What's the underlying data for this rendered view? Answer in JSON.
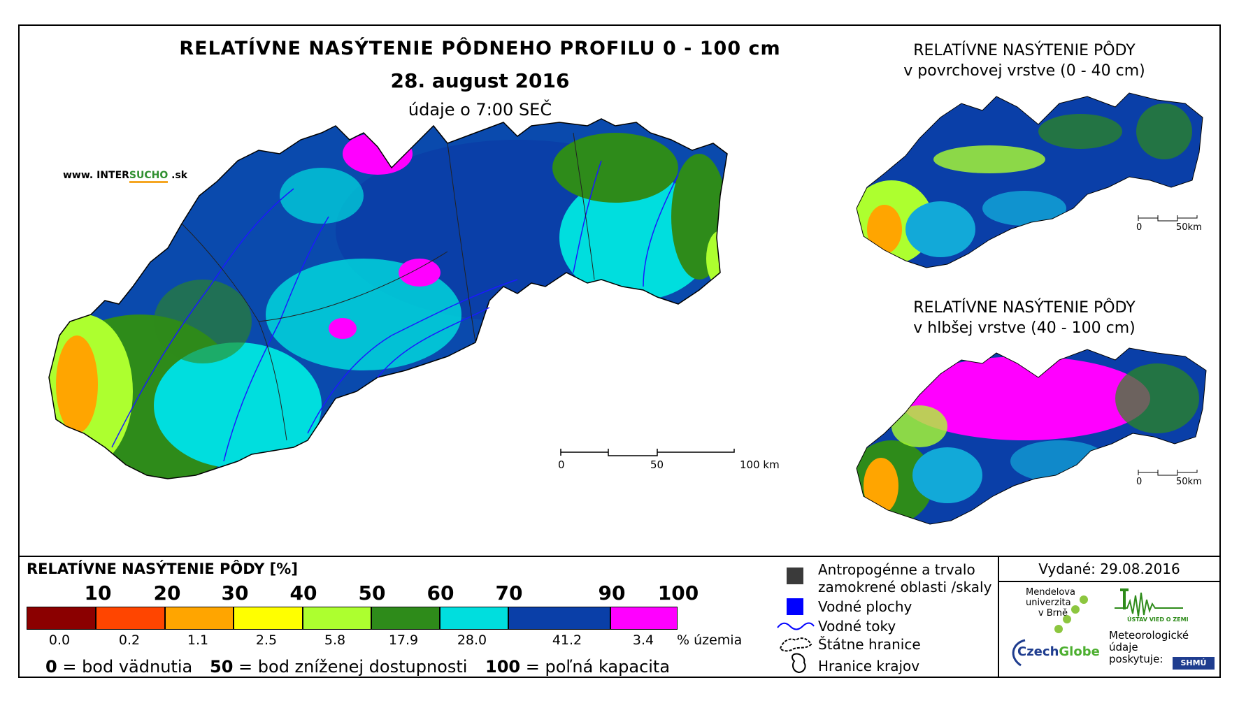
{
  "header": {
    "title": "RELATÍVNE NASÝTENIE PÔDNEHO PROFILU 0 - 100 cm",
    "date": "28. august 2016",
    "subtitle": "údaje o 7:00 SEČ",
    "site_prefix": "www. INTER",
    "site_brand": "SUCHO",
    "site_suffix": " .sk"
  },
  "map_main": {
    "scale": {
      "tick0": "0",
      "tick1": "50",
      "tick2": "100 km"
    }
  },
  "map_surface": {
    "title_line1": "RELATÍVNE NASÝTENIE PÔDY",
    "title_line2": "v povrchovej vrstve (0 - 40 cm)",
    "scale": {
      "tick0": "0",
      "tick1": "50km"
    }
  },
  "map_deep": {
    "title_line1": "RELATÍVNE NASÝTENIE PÔDY",
    "title_line2": "v hlbšej vrstve (40 - 100 cm)",
    "scale": {
      "tick0": "0",
      "tick1": "50km"
    }
  },
  "legend": {
    "title": "RELATÍVNE NASÝTENIE PÔDY [%]",
    "ticks": [
      "10",
      "20",
      "30",
      "40",
      "50",
      "60",
      "70",
      "90",
      "100"
    ],
    "classes": [
      {
        "color": "#8b0000",
        "share": "0.0"
      },
      {
        "color": "#ff4500",
        "share": "0.2"
      },
      {
        "color": "#ffa500",
        "share": "1.1"
      },
      {
        "color": "#ffff00",
        "share": "2.5"
      },
      {
        "color": "#adff2f",
        "share": "5.8"
      },
      {
        "color": "#2e8b1a",
        "share": "17.9"
      },
      {
        "color": "#00dede",
        "share": "28.0"
      },
      {
        "color": "#0a3fa8",
        "share": "41.2"
      },
      {
        "color": "#ff00ff",
        "share": "3.4"
      }
    ],
    "share_unit": "% územia",
    "note0_num": "0",
    "note0_text": " = bod vädnutia",
    "note50_num": "50",
    "note50_text": " = bod zníženej dostupnosti",
    "note100_num": "100",
    "note100_text": " = poľná kapacita"
  },
  "symbols": {
    "anthropogenic_line1": "Antropogénne a trvalo",
    "anthropogenic_line2": "zamokrené oblasti /skaly",
    "water_bodies": "Vodné plochy",
    "rivers": "Vodné toky",
    "state_border": "Štátne hranice",
    "region_border": "Hranice krajov",
    "colors": {
      "anthropogenic": "#3a3a3a",
      "water": "#0000ff",
      "river": "#0000ff"
    }
  },
  "credits": {
    "issued": "Vydané: 29.08.2016",
    "mendel_line1": "Mendelova",
    "mendel_line2": "univerzita",
    "mendel_line3": "v Brně",
    "czechglobe_a": "Czech",
    "czechglobe_b": "Globe",
    "uvgz": "ÚSTAV VIED O ZEMI",
    "meteo_line1": "Meteorologické",
    "meteo_line2": "údaje",
    "meteo_line3": "poskytuje:",
    "shmu": "SHMÚ"
  }
}
